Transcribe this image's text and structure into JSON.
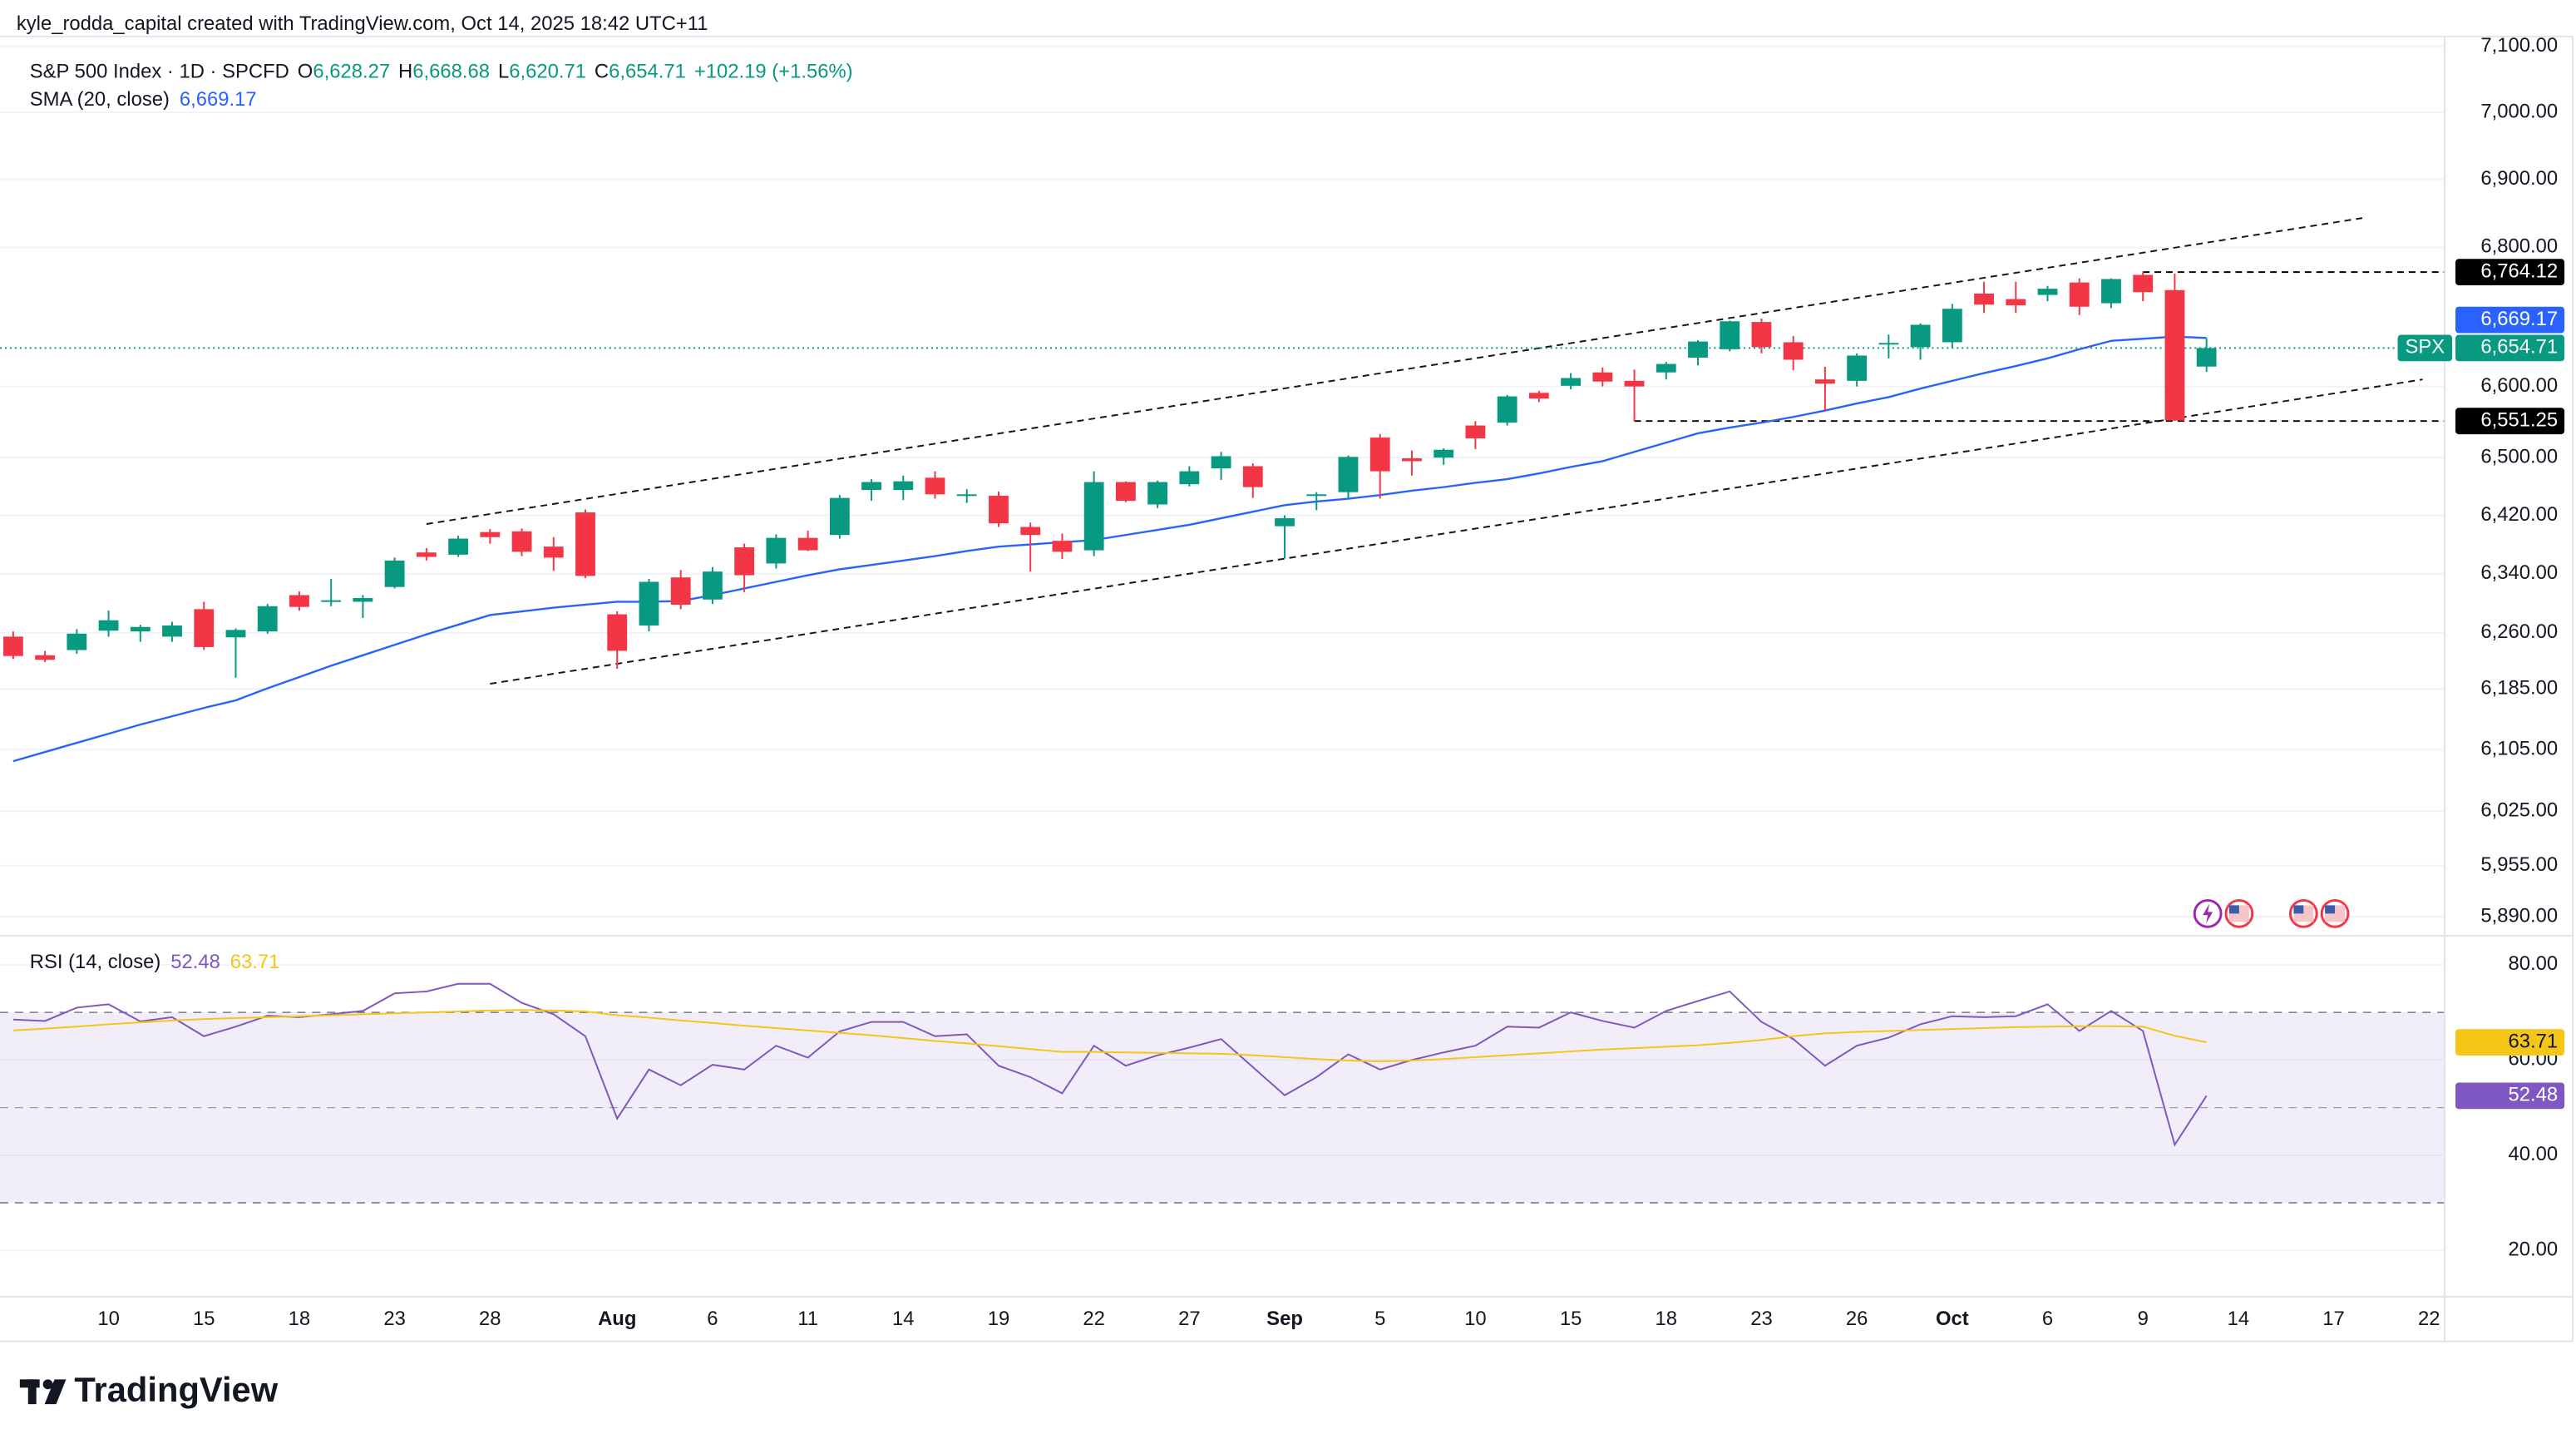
{
  "attribution": "kyle_rodda_capital created with TradingView.com, Oct 14, 2025 18:42 UTC+11",
  "brand": "TradingView",
  "chart_data": [
    {
      "type": "candlestick",
      "title": "S&P 500 Index · 1D · SPCFD",
      "symbol_tag": "SPX",
      "ohlc_keys": [
        "O",
        "H",
        "L",
        "C"
      ],
      "ohlc_labels": [
        "6,628.27",
        "6,668.68",
        "6,620.71",
        "6,654.71"
      ],
      "change_label": "+102.19 (+1.56%)",
      "log_scale": true,
      "up_color": "#089981",
      "down_color": "#f23645",
      "grid": true,
      "ylim": [
        5869,
        7115
      ],
      "yticks": [
        {
          "value": 5890,
          "label": "5,890.00"
        },
        {
          "value": 5955,
          "label": "5,955.00"
        },
        {
          "value": 6025,
          "label": "6,025.00"
        },
        {
          "value": 6105,
          "label": "6,105.00"
        },
        {
          "value": 6185,
          "label": "6,185.00"
        },
        {
          "value": 6260,
          "label": "6,260.00"
        },
        {
          "value": 6340,
          "label": "6,340.00"
        },
        {
          "value": 6420,
          "label": "6,420.00"
        },
        {
          "value": 6500,
          "label": "6,500.00"
        },
        {
          "value": 6600,
          "label": "6,600.00"
        },
        {
          "value": 6800,
          "label": "6,800.00"
        },
        {
          "value": 6900,
          "label": "6,900.00"
        },
        {
          "value": 7000,
          "label": "7,000.00"
        },
        {
          "value": 7100,
          "label": "7,100.00"
        }
      ],
      "categories": [
        null,
        null,
        null,
        "10",
        null,
        null,
        "15",
        null,
        null,
        "18",
        null,
        null,
        "23",
        null,
        null,
        "28",
        null,
        null,
        null,
        "Aug",
        null,
        null,
        "6",
        null,
        null,
        "11",
        null,
        null,
        "14",
        null,
        null,
        "19",
        null,
        null,
        "22",
        null,
        null,
        "27",
        null,
        null,
        "Sep",
        null,
        null,
        "5",
        null,
        null,
        "10",
        null,
        null,
        "15",
        null,
        null,
        "18",
        null,
        null,
        "23",
        null,
        null,
        "26",
        null,
        null,
        "Oct",
        null,
        null,
        "6",
        null,
        null,
        "9",
        null,
        null,
        "14",
        null,
        null,
        "17",
        null,
        null,
        "22"
      ],
      "open": [
        6255,
        6230,
        6237,
        6263,
        6262,
        6255,
        6292,
        6254,
        6262,
        6311,
        6302,
        6302,
        6322,
        6369,
        6366,
        6397,
        6398,
        6377,
        6424,
        6285,
        6270,
        6335,
        6305,
        6376,
        6354,
        6389,
        6393,
        6455,
        6455,
        6472,
        6447,
        6447,
        6404,
        6385,
        6372,
        6466,
        6435,
        6463,
        6485,
        6488,
        6405,
        6448,
        6452,
        6528,
        6499,
        6500,
        6545,
        6549,
        6591,
        6601,
        6620,
        6608,
        6620,
        6641,
        6653,
        6692,
        6663,
        6610,
        6608,
        6660,
        6656,
        6663,
        6733,
        6725,
        6731,
        6749,
        6719,
        6760,
        6738,
        6628.27,
        null,
        null,
        null,
        null,
        null,
        null,
        null
      ],
      "high": [
        6262,
        6236,
        6265,
        6290,
        6271,
        6275,
        6302,
        6266,
        6299,
        6316,
        6333,
        6311,
        6362,
        6375,
        6392,
        6401,
        6402,
        6390,
        6428,
        6289,
        6333,
        6345,
        6349,
        6381,
        6394,
        6399,
        6448,
        6470,
        6475,
        6481,
        6456,
        6453,
        6410,
        6395,
        6481,
        6467,
        6468,
        6488,
        6508,
        6492,
        6420,
        6452,
        6503,
        6533,
        6510,
        6513,
        6551,
        6588,
        6594,
        6619,
        6627,
        6624,
        6635,
        6666,
        6694,
        6697,
        6672,
        6628,
        6647,
        6674,
        6690,
        6718,
        6750,
        6750,
        6744,
        6755,
        6755,
        6764.12,
        6762,
        6668.68,
        null,
        null,
        null,
        null,
        null,
        null,
        null
      ],
      "low": [
        6225,
        6221,
        6232,
        6255,
        6248,
        6248,
        6237,
        6200,
        6259,
        6290,
        6296,
        6280,
        6320,
        6358,
        6363,
        6381,
        6364,
        6344,
        6334,
        6212,
        6262,
        6292,
        6299,
        6315,
        6347,
        6371,
        6388,
        6440,
        6441,
        6443,
        6437,
        6404,
        6343,
        6360,
        6364,
        6438,
        6430,
        6460,
        6469,
        6444,
        6361,
        6427,
        6443,
        6443,
        6475,
        6490,
        6512,
        6545,
        6578,
        6596,
        6600,
        6551,
        6610,
        6630,
        6650,
        6647,
        6623,
        6566,
        6600,
        6640,
        6638,
        6655,
        6705,
        6705,
        6722,
        6702,
        6712,
        6722,
        6551.25,
        6620.71,
        null,
        null,
        null,
        null,
        null,
        null,
        null
      ],
      "close": [
        6229,
        6224,
        6259,
        6277,
        6268,
        6270,
        6241,
        6264,
        6296,
        6295,
        6304,
        6307,
        6358,
        6363,
        6388,
        6390,
        6370,
        6362,
        6337,
        6236,
        6329,
        6298,
        6343,
        6338,
        6389,
        6372,
        6444,
        6466,
        6467,
        6449,
        6449,
        6409,
        6393,
        6370,
        6466,
        6440,
        6466,
        6481,
        6502,
        6459,
        6416,
        6449,
        6501,
        6481,
        6495,
        6511,
        6527,
        6586,
        6583,
        6612,
        6607,
        6600,
        6632,
        6664,
        6693,
        6656,
        6638,
        6604,
        6644,
        6662,
        6688,
        6711,
        6717,
        6716,
        6740,
        6714,
        6754,
        6735,
        6552,
        6654.71,
        null,
        null,
        null,
        null,
        null,
        null,
        null
      ],
      "series": [
        {
          "name": "SMA (20, close)",
          "color": "#2962ff",
          "last_label": "6,669.17",
          "values": [
            6090,
            6102,
            6114,
            6126,
            6138,
            6149,
            6160,
            6170,
            6186,
            6201,
            6216,
            6230,
            6244,
            6258,
            6271,
            6284,
            6289,
            6294,
            6298,
            6302,
            6302,
            6303,
            6311,
            6320,
            6329,
            6338,
            6346,
            6352,
            6358,
            6364,
            6371,
            6377,
            6380,
            6383,
            6386,
            6393,
            6400,
            6407,
            6416,
            6425,
            6434,
            6439,
            6443,
            6448,
            6454,
            6459,
            6465,
            6470,
            6478,
            6487,
            6495,
            6508,
            6521,
            6534,
            6542,
            6549,
            6557,
            6566,
            6576,
            6585,
            6597,
            6608,
            6619,
            6629,
            6640,
            6653,
            6665,
            6668,
            6671,
            6669.17,
            null,
            null,
            null,
            null,
            null,
            null,
            null
          ]
        }
      ],
      "levels": [
        {
          "value": 6764.12,
          "label": "6,764.12",
          "from": 67,
          "color": "#000000"
        },
        {
          "value": 6551.25,
          "label": "6,551.25",
          "from": 51,
          "color": "#000000"
        }
      ],
      "trendlines": [
        {
          "x": [
            13,
            73.9
          ],
          "y": [
            6408,
            6843
          ]
        },
        {
          "x": [
            15,
            75.8
          ],
          "y": [
            6192,
            6610
          ]
        }
      ]
    },
    {
      "type": "line",
      "title": "RSI (14, close)",
      "ylim": [
        12,
        85.9
      ],
      "yticks": [
        {
          "value": 20,
          "label": "20.00"
        },
        {
          "value": 40,
          "label": "40.00"
        },
        {
          "value": 60,
          "label": "60.00"
        },
        {
          "value": 80,
          "label": "80.00"
        }
      ],
      "bands": [
        30,
        70
      ],
      "midline": 50,
      "band_color": "#7e57c2",
      "series": [
        {
          "color": "#7e57c2",
          "values": [
            68.5,
            68.2,
            71.0,
            71.7,
            68.1,
            69.0,
            65.0,
            67.0,
            69.3,
            69.0,
            69.6,
            70.3,
            74.0,
            74.4,
            76.0,
            76.0,
            72.0,
            69.6,
            65.0,
            47.7,
            58.0,
            54.7,
            59.0,
            58.0,
            63.0,
            60.5,
            66.0,
            68.0,
            68.0,
            65.0,
            65.4,
            58.8,
            56.4,
            53.0,
            63.0,
            58.8,
            61.0,
            62.6,
            64.4,
            58.5,
            52.6,
            56.4,
            61.2,
            58.0,
            60.0,
            61.6,
            63.0,
            67.0,
            66.8,
            70.0,
            68.2,
            66.8,
            70.3,
            72.4,
            74.4,
            68.0,
            64.4,
            58.8,
            63.0,
            64.7,
            67.5,
            69.2,
            69.0,
            69.2,
            71.7,
            66.1,
            70.3,
            66.1,
            42.2,
            52.48,
            null,
            null,
            null,
            null,
            null,
            null,
            null
          ]
        },
        {
          "color": "#f5c518",
          "values": [
            66.2,
            66.6,
            67.0,
            67.5,
            67.9,
            68.3,
            68.6,
            68.8,
            69.0,
            69.2,
            69.4,
            69.6,
            69.8,
            70.0,
            70.2,
            70.4,
            70.5,
            70.4,
            70.2,
            69.4,
            68.9,
            68.3,
            67.8,
            67.2,
            66.7,
            66.2,
            65.7,
            65.2,
            64.6,
            64.0,
            63.5,
            62.9,
            62.3,
            61.7,
            61.7,
            61.6,
            61.5,
            61.4,
            61.3,
            61.0,
            60.6,
            60.2,
            59.9,
            59.7,
            59.9,
            60.2,
            60.6,
            61.0,
            61.4,
            61.8,
            62.2,
            62.5,
            62.8,
            63.1,
            63.6,
            64.2,
            65.0,
            65.6,
            65.9,
            66.1,
            66.3,
            66.5,
            66.7,
            66.9,
            67.0,
            67.1,
            67.1,
            67.0,
            65.1,
            63.71,
            null,
            null,
            null,
            null,
            null,
            null,
            null
          ]
        }
      ]
    }
  ]
}
